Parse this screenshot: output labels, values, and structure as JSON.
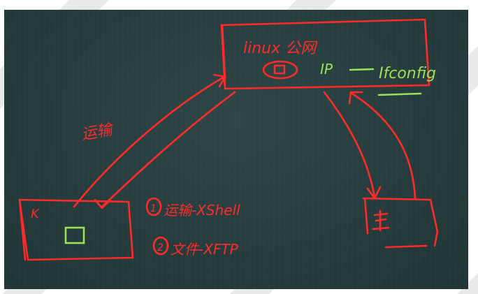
{
  "colors": {
    "chalk_red": "#ff2a2a",
    "chalk_green": "#9be05a",
    "board": "#243c3c"
  },
  "server": {
    "title": "linux 公网",
    "ip_label": "IP",
    "command": "Ifconfig"
  },
  "labels": {
    "transfer": "运输",
    "step1": "运输-XShell",
    "step2": "文件-XFTP",
    "step1_num": "1",
    "step2_num": "2",
    "client_mark": "K"
  }
}
